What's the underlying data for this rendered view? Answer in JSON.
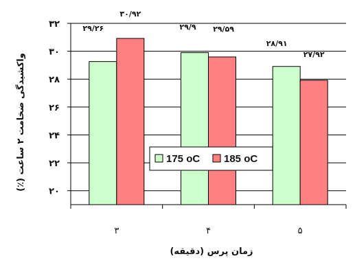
{
  "chart_data": {
    "type": "bar",
    "categories": [
      "۳",
      "۴",
      "۵"
    ],
    "series": [
      {
        "name": "175 oC",
        "values": [
          29.26,
          29.9,
          28.91
        ],
        "labels": [
          "۲۹/۲۶",
          "۲۹/۹",
          "۲۸/۹۱"
        ],
        "color": "#CCFFCC"
      },
      {
        "name": "185 oC",
        "values": [
          30.92,
          29.59,
          27.92
        ],
        "labels": [
          "۳۰/۹۲",
          "۲۹/۵۹",
          "۲۷/۹۲"
        ],
        "color": "#FF8080"
      }
    ],
    "ylim": [
      19,
      32
    ],
    "yticks": [
      20,
      22,
      24,
      26,
      28,
      30,
      32
    ],
    "ytick_labels": [
      "۲۰",
      "۲۲",
      "۲۴",
      "۲۶",
      "۲۸",
      "۳۰",
      "۳۲"
    ],
    "xlabel": "زمان پرس (دقیقه)",
    "ylabel": "واکشیدگی ضخامت ۲ ساعت (٪)",
    "grid": true,
    "legend_position": "center"
  }
}
